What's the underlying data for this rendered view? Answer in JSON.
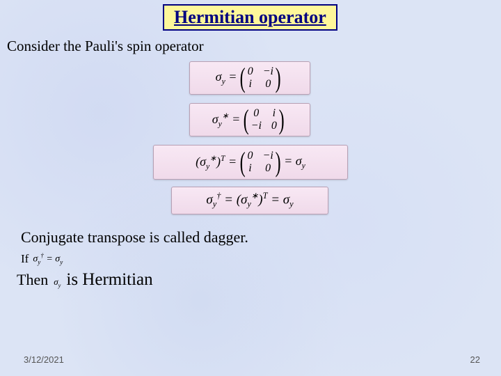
{
  "title": "Hermitian operator",
  "intro": "Consider the Pauli's spin operator",
  "equations": {
    "eq1": {
      "lhs": "σ<sub>y</sub> =",
      "matrix": [
        [
          "0",
          "−i"
        ],
        [
          "i",
          "0"
        ]
      ]
    },
    "eq2": {
      "lhs": "σ<sub>y</sub><sup>∗</sup> =",
      "matrix": [
        [
          "0",
          "i"
        ],
        [
          "−i",
          "0"
        ]
      ]
    },
    "eq3": {
      "lhs": "(σ<sub>y</sub><sup>∗</sup>)<sup>T</sup> =",
      "matrix": [
        [
          "0",
          "−i"
        ],
        [
          "i",
          "0"
        ]
      ],
      "rhs": " = σ<sub>y</sub>"
    },
    "eq4": {
      "text": "σ<sub>y</sub><sup>†</sup> = (σ<sub>y</sub><sup>∗</sup>)<sup>T</sup> = σ<sub>y</sub>"
    }
  },
  "conjugate_text": "Conjugate transpose is called dagger.",
  "if_label": "If",
  "if_expr": "σ<sub>y</sub><sup>†</sup> = σ<sub>y</sub>",
  "then_label": "Then",
  "then_sym": "σ<sub>y</sub>",
  "then_text": "is Hermitian",
  "footer": {
    "date": "3/12/2021",
    "page": "22"
  },
  "style": {
    "title_bg": "#fef79a",
    "title_border": "#000080",
    "title_color": "#000080",
    "eq_bg_top": "#f8e8f4",
    "eq_bg_bottom": "#f0daea",
    "page_bg": "#dce4f5"
  }
}
